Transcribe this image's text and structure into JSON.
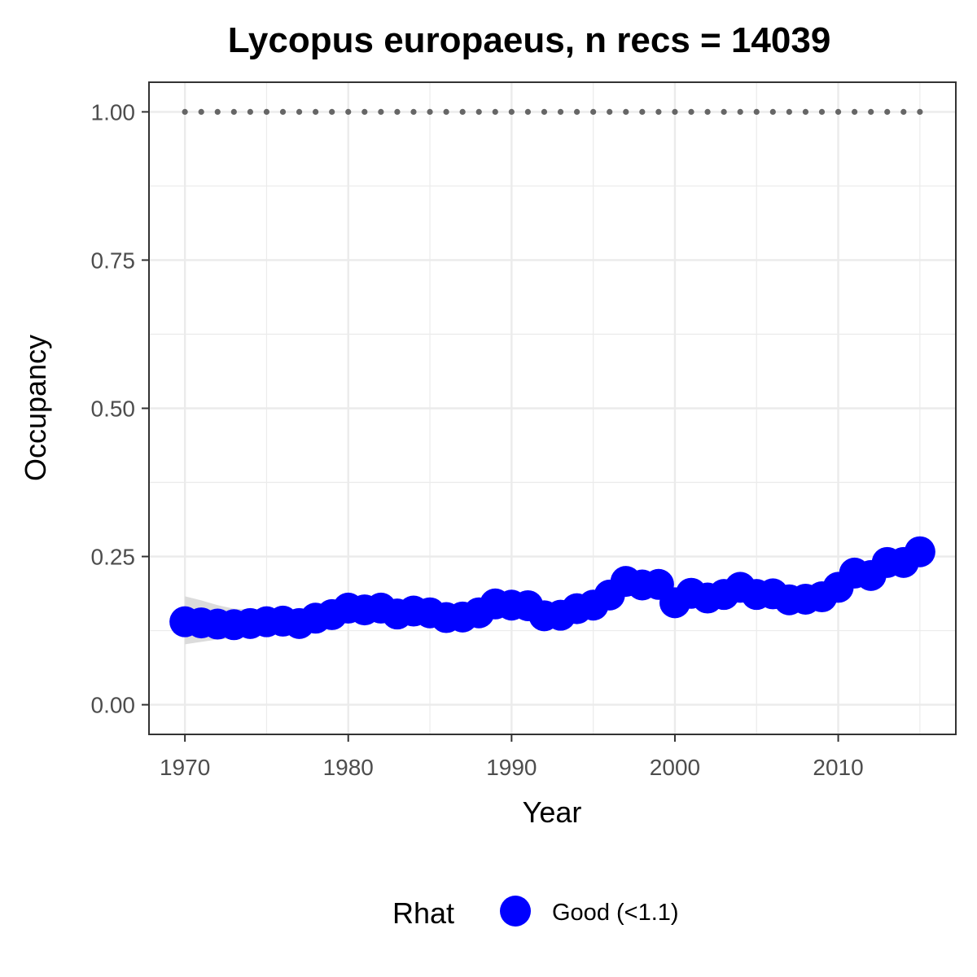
{
  "chart_data": {
    "type": "line",
    "title": "Lycopus europaeus, n recs = 14039",
    "xlabel": "Year",
    "ylabel": "Occupancy",
    "xlim": [
      1967.8,
      2017.2
    ],
    "ylim": [
      -0.05,
      1.05
    ],
    "x_ticks": [
      1970,
      1980,
      1990,
      2000,
      2010
    ],
    "x_tick_labels": [
      "1970",
      "1980",
      "1990",
      "2000",
      "2010"
    ],
    "y_ticks": [
      0,
      0.25,
      0.5,
      0.75,
      1.0
    ],
    "y_tick_labels": [
      "0.00",
      "0.25",
      "0.50",
      "0.75",
      "1.00"
    ],
    "grid": true,
    "legend_position": "bottom",
    "legend": {
      "title": "Rhat",
      "entries": [
        {
          "label": "Good (<1.1)",
          "color": "#0000ff"
        }
      ]
    },
    "colors": {
      "points": "#0000ff",
      "ribbon": "#d9d9d9",
      "reference_line": "#666666",
      "grid": "#ebebeb",
      "panel_border": "#333333"
    },
    "x": [
      1970,
      1971,
      1972,
      1973,
      1974,
      1975,
      1976,
      1977,
      1978,
      1979,
      1980,
      1981,
      1982,
      1983,
      1984,
      1985,
      1986,
      1987,
      1988,
      1989,
      1990,
      1991,
      1992,
      1993,
      1994,
      1995,
      1996,
      1997,
      1998,
      1999,
      2000,
      2001,
      2002,
      2003,
      2004,
      2005,
      2006,
      2007,
      2008,
      2009,
      2010,
      2011,
      2012,
      2013,
      2014,
      2015
    ],
    "series": [
      {
        "values": [
          0.14,
          0.138,
          0.136,
          0.135,
          0.137,
          0.14,
          0.141,
          0.137,
          0.146,
          0.152,
          0.163,
          0.16,
          0.163,
          0.153,
          0.158,
          0.155,
          0.147,
          0.148,
          0.155,
          0.17,
          0.168,
          0.167,
          0.15,
          0.151,
          0.162,
          0.168,
          0.185,
          0.208,
          0.202,
          0.203,
          0.172,
          0.188,
          0.18,
          0.186,
          0.198,
          0.186,
          0.187,
          0.177,
          0.178,
          0.182,
          0.198,
          0.222,
          0.218,
          0.24,
          0.24,
          0.258
        ],
        "lower": [
          0.102,
          0.106,
          0.11,
          0.112,
          0.116,
          0.12,
          0.122,
          0.121,
          0.128,
          0.135,
          0.146,
          0.145,
          0.147,
          0.139,
          0.143,
          0.141,
          0.134,
          0.135,
          0.142,
          0.156,
          0.155,
          0.154,
          0.138,
          0.139,
          0.149,
          0.155,
          0.171,
          0.193,
          0.188,
          0.189,
          0.159,
          0.175,
          0.167,
          0.173,
          0.184,
          0.173,
          0.174,
          0.164,
          0.165,
          0.169,
          0.184,
          0.207,
          0.203,
          0.224,
          0.224,
          0.241
        ],
        "upper": [
          0.183,
          0.176,
          0.168,
          0.162,
          0.161,
          0.162,
          0.161,
          0.156,
          0.164,
          0.17,
          0.181,
          0.177,
          0.179,
          0.168,
          0.173,
          0.17,
          0.161,
          0.162,
          0.169,
          0.185,
          0.182,
          0.181,
          0.163,
          0.164,
          0.176,
          0.182,
          0.2,
          0.224,
          0.217,
          0.218,
          0.186,
          0.202,
          0.194,
          0.2,
          0.213,
          0.2,
          0.201,
          0.191,
          0.192,
          0.196,
          0.213,
          0.238,
          0.234,
          0.257,
          0.257,
          0.276
        ]
      },
      {
        "values": [
          1,
          1,
          1,
          1,
          1,
          1,
          1,
          1,
          1,
          1,
          1,
          1,
          1,
          1,
          1,
          1,
          1,
          1,
          1,
          1,
          1,
          1,
          1,
          1,
          1,
          1,
          1,
          1,
          1,
          1,
          1,
          1,
          1,
          1,
          1,
          1,
          1,
          1,
          1,
          1,
          1,
          1,
          1,
          1,
          1,
          1
        ]
      }
    ]
  }
}
